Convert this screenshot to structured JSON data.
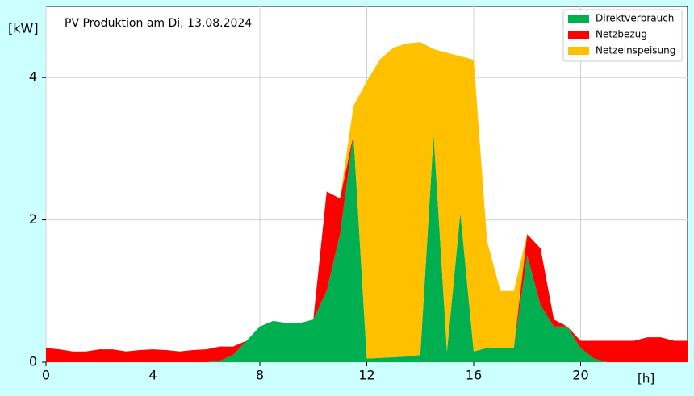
{
  "chart_data": {
    "type": "stacked-area",
    "title": "PV Produktion am Di, 13.08.2024",
    "y_label": "[kW]",
    "x_label": "[h]",
    "x": [
      0,
      0.5,
      1,
      1.5,
      2,
      2.5,
      3,
      3.5,
      4,
      4.5,
      5,
      5.5,
      6,
      6.5,
      7,
      7.5,
      8,
      8.5,
      9,
      9.5,
      10,
      10.5,
      11,
      11.5,
      12,
      12.5,
      13,
      13.5,
      14,
      14.5,
      15,
      15.5,
      16,
      16.5,
      17,
      17.5,
      18,
      18.5,
      19,
      19.5,
      20,
      20.5,
      21,
      21.5,
      22,
      22.5,
      23,
      23.5,
      24
    ],
    "series": [
      {
        "name": "Direktverbrauch",
        "color": "#00b050",
        "values": [
          0,
          0,
          0,
          0,
          0,
          0,
          0,
          0,
          0,
          0,
          0,
          0,
          0,
          0.02,
          0.1,
          0.3,
          0.5,
          0.58,
          0.55,
          0.55,
          0.6,
          1.0,
          1.8,
          3.2,
          0.05,
          0.06,
          0.07,
          0.08,
          0.1,
          3.2,
          0.15,
          2.1,
          0.15,
          0.2,
          0.2,
          0.2,
          1.5,
          0.8,
          0.5,
          0.5,
          0.2,
          0.05,
          0,
          0,
          0,
          0,
          0,
          0,
          0
        ]
      },
      {
        "name": "Netzbezug",
        "color": "#ff0000",
        "values": [
          0.2,
          0.18,
          0.15,
          0.15,
          0.18,
          0.18,
          0.15,
          0.17,
          0.18,
          0.17,
          0.15,
          0.17,
          0.18,
          0.2,
          0.12,
          0,
          0,
          0,
          0,
          0,
          0,
          1.4,
          0.5,
          0,
          0,
          0,
          0,
          0,
          0,
          0,
          0,
          0,
          0,
          0,
          0,
          0,
          0.3,
          0.8,
          0.1,
          0,
          0.1,
          0.25,
          0.3,
          0.3,
          0.3,
          0.35,
          0.35,
          0.3,
          0.3
        ]
      },
      {
        "name": "Netzeinspeisung",
        "color": "#ffc000",
        "values": [
          0,
          0,
          0,
          0,
          0,
          0,
          0,
          0,
          0,
          0,
          0,
          0,
          0,
          0,
          0,
          0,
          0,
          0,
          0,
          0,
          0,
          0,
          0,
          0.4,
          3.9,
          4.2,
          4.35,
          4.4,
          4.4,
          1.2,
          4.2,
          2.2,
          4.1,
          1.5,
          0.8,
          0.8,
          0,
          0,
          0,
          0,
          0,
          0,
          0,
          0,
          0,
          0,
          0,
          0,
          0
        ]
      }
    ],
    "xlim": [
      0,
      24
    ],
    "xticks": [
      0,
      4,
      8,
      12,
      16,
      20
    ],
    "ylim": [
      0,
      5
    ],
    "yticks": [
      0,
      2,
      4
    ],
    "grid": true,
    "legend": "upper right"
  }
}
